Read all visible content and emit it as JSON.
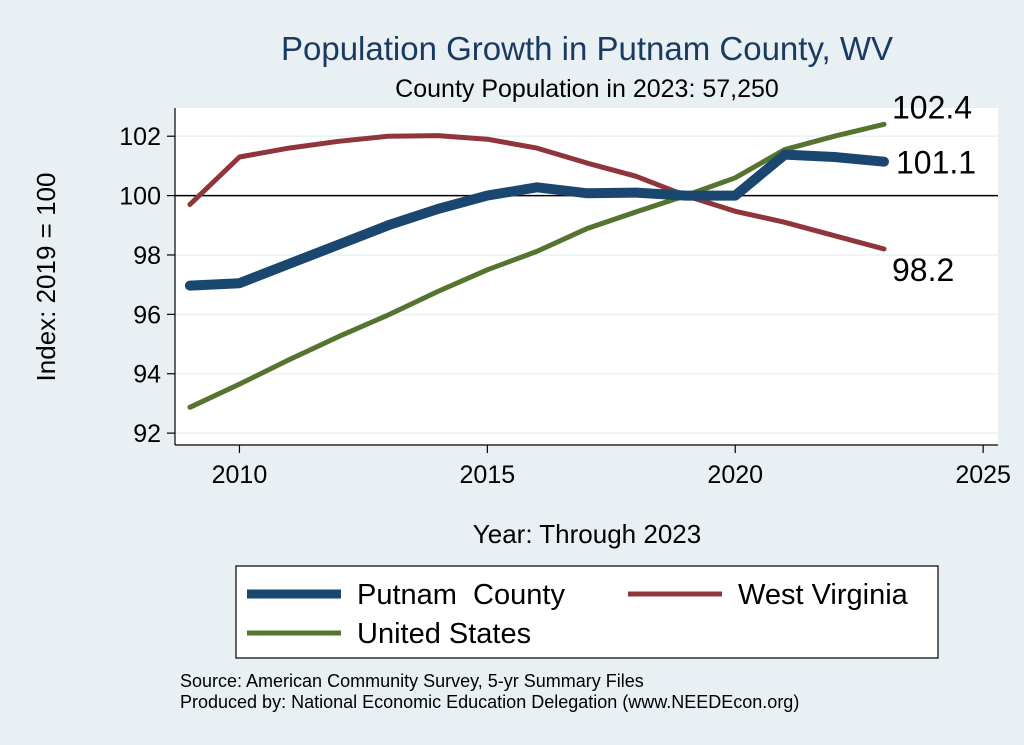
{
  "chart_data": {
    "type": "line",
    "title": "Population Growth in Putnam County, WV",
    "subtitle": "County Population in 2023: 57,250",
    "xlabel": "Year: Through 2023",
    "ylabel": "Index: 2019 = 100",
    "xlim": [
      2008.7,
      2025.3
    ],
    "ylim": [
      91.6,
      102.95
    ],
    "x_ticks": [
      2010,
      2015,
      2020,
      2025
    ],
    "y_ticks": [
      92,
      94,
      96,
      98,
      100,
      102
    ],
    "reference_line": 100,
    "grid": true,
    "legend_position": "bottom",
    "series": [
      {
        "name": "Putnam  County",
        "color": "#1a476f",
        "x": [
          2009,
          2010,
          2011,
          2012,
          2013,
          2014,
          2015,
          2016,
          2017,
          2018,
          2019,
          2020,
          2021,
          2022,
          2023
        ],
        "values": [
          96.97,
          97.05,
          97.7,
          98.35,
          99.0,
          99.55,
          100.0,
          100.28,
          100.08,
          100.1,
          100.0,
          100.0,
          101.38,
          101.3,
          101.14
        ],
        "end_label": "101.1"
      },
      {
        "name": "West Virginia",
        "color": "#90353b",
        "x": [
          2009,
          2010,
          2011,
          2012,
          2013,
          2014,
          2015,
          2016,
          2017,
          2018,
          2019,
          2020,
          2021,
          2022,
          2023
        ],
        "values": [
          99.7,
          101.3,
          101.6,
          101.83,
          102.0,
          102.02,
          101.9,
          101.6,
          101.1,
          100.65,
          100.0,
          99.47,
          99.1,
          98.65,
          98.2
        ],
        "end_label": "98.2"
      },
      {
        "name": "United States",
        "color": "#55752f",
        "x": [
          2009,
          2010,
          2011,
          2012,
          2013,
          2014,
          2015,
          2016,
          2017,
          2018,
          2019,
          2020,
          2021,
          2022,
          2023
        ],
        "values": [
          92.87,
          93.65,
          94.47,
          95.25,
          95.98,
          96.77,
          97.5,
          98.12,
          98.88,
          99.45,
          100.0,
          100.6,
          101.55,
          102.0,
          102.4
        ],
        "end_label": "102.4"
      }
    ],
    "notes": [
      "Source: American Community Survey, 5-yr Summary Files",
      "Produced by: National Economic Education Delegation (www.NEEDEcon.org)"
    ]
  },
  "colors": {
    "background": "#e9f0f3",
    "plot_background": "#ffffff",
    "grid": "#eaf2f3",
    "title": "#1a3a64"
  }
}
